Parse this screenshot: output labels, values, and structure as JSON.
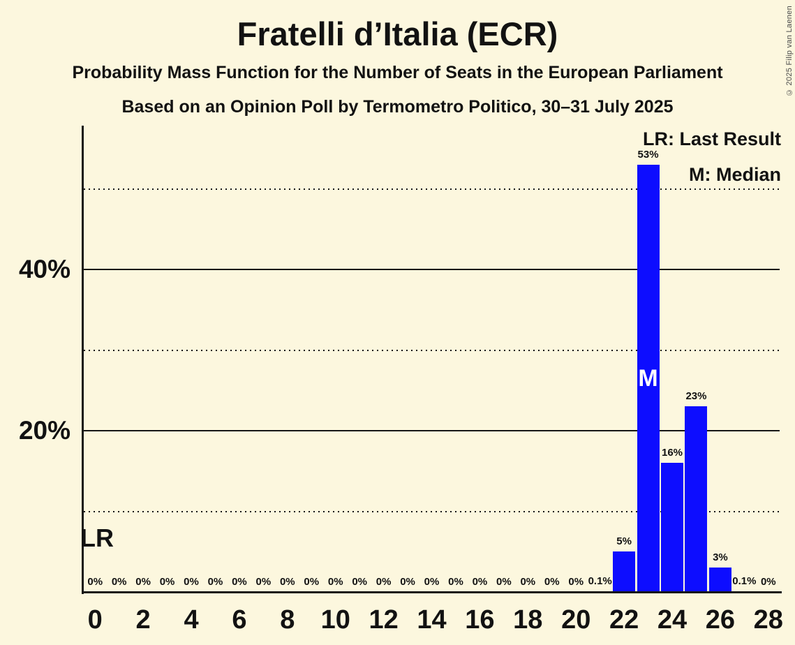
{
  "header": {
    "title": "Fratelli d’Italia (ECR)",
    "subtitle": "Probability Mass Function for the Number of Seats in the European Parliament",
    "source_line": "Based on an Opinion Poll by Termometro Politico, 30–31 July 2025"
  },
  "copyright": "© 2025 Filip van Laenen",
  "legend": {
    "last_result": "LR: Last Result",
    "median": "M: Median"
  },
  "annotations": {
    "last_result_marker": "LR",
    "median_marker": "M"
  },
  "colors": {
    "background": "#FCF7DE",
    "bar": "#0D0DFF",
    "text": "#121212",
    "axis": "#161616",
    "median_marker_text": "#FFFFFF",
    "copyright_text": "#4a4a4a"
  },
  "chart_data": {
    "type": "bar",
    "title": "Fratelli d’Italia (ECR)",
    "seats": [
      0,
      1,
      2,
      3,
      4,
      5,
      6,
      7,
      8,
      9,
      10,
      11,
      12,
      13,
      14,
      15,
      16,
      17,
      18,
      19,
      20,
      21,
      22,
      23,
      24,
      25,
      26,
      27,
      28
    ],
    "probabilities_percent": [
      0,
      0,
      0,
      0,
      0,
      0,
      0,
      0,
      0,
      0,
      0,
      0,
      0,
      0,
      0,
      0,
      0,
      0,
      0,
      0,
      0,
      0.1,
      5,
      53,
      16,
      23,
      3,
      0.1,
      0
    ],
    "bar_labels": [
      "0%",
      "0%",
      "0%",
      "0%",
      "0%",
      "0%",
      "0%",
      "0%",
      "0%",
      "0%",
      "0%",
      "0%",
      "0%",
      "0%",
      "0%",
      "0%",
      "0%",
      "0%",
      "0%",
      "0%",
      "0%",
      "0.1%",
      "5%",
      "53%",
      "16%",
      "23%",
      "3%",
      "0.1%",
      "0%"
    ],
    "x_ticks": [
      0,
      2,
      4,
      6,
      8,
      10,
      12,
      14,
      16,
      18,
      20,
      22,
      24,
      26,
      28
    ],
    "y_ticks": [
      {
        "value": 20,
        "label": "20%"
      },
      {
        "value": 40,
        "label": "40%"
      }
    ],
    "solid_gridlines_percent": [
      20,
      40
    ],
    "dotted_gridlines_percent": [
      10,
      30,
      50
    ],
    "ylim_percent": [
      0,
      57.8
    ],
    "median_seat": 23,
    "legend_position": "top-right",
    "grid": "horizontal-only"
  }
}
